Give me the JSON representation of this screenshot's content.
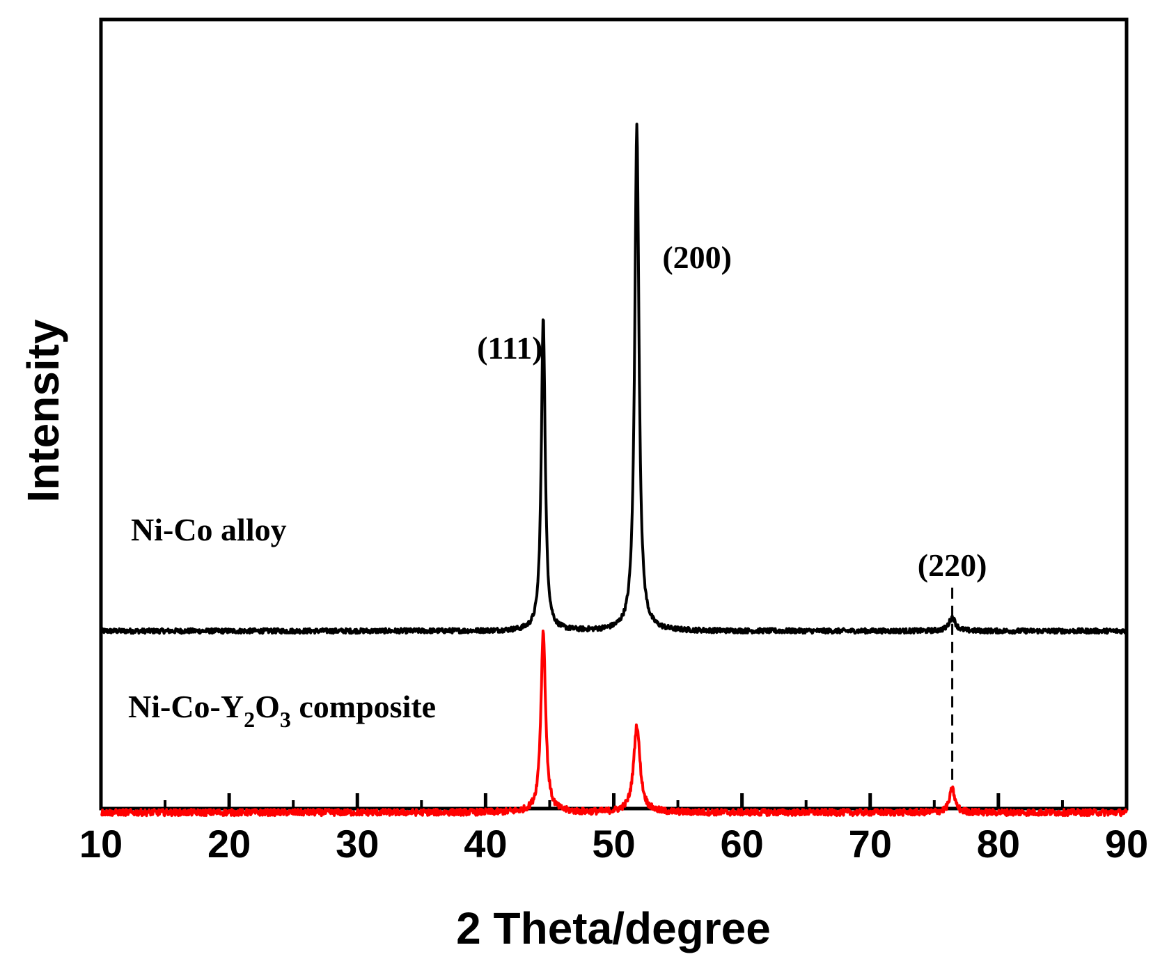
{
  "chart_data": {
    "type": "line",
    "title": "",
    "xlabel": "2 Theta/degree",
    "ylabel": "Intensity",
    "xlim": [
      10,
      90
    ],
    "ylim": [
      -0.45,
      1.55
    ],
    "x_ticks": [
      "10",
      "20",
      "30",
      "40",
      "50",
      "60",
      "70",
      "80",
      "90"
    ],
    "y_ticks_shown": false,
    "grid": false,
    "legend": "none",
    "series": [
      {
        "name": "Ni-Co alloy",
        "color": "#000000",
        "baseline": 0.0,
        "noise": 0.006,
        "peaks": [
          {
            "x": 44.5,
            "height": 0.8,
            "width": 0.18
          },
          {
            "x": 51.8,
            "height": 1.28,
            "width": 0.2
          },
          {
            "x": 76.4,
            "height": 0.035,
            "width": 0.3
          }
        ]
      },
      {
        "name": "Ni-Co-Y2O3 composite",
        "color": "#ff0000",
        "baseline": -0.46,
        "noise": 0.008,
        "peaks": [
          {
            "x": 44.5,
            "height": 0.46,
            "width": 0.22
          },
          {
            "x": 51.8,
            "height": 0.22,
            "width": 0.3
          },
          {
            "x": 76.4,
            "height": 0.06,
            "width": 0.25
          }
        ]
      }
    ],
    "annotations": [
      {
        "text": "(111)",
        "x": 41.9,
        "y": 0.69
      },
      {
        "text": "(200)",
        "x": 56.5,
        "y": 0.92
      },
      {
        "text": "(220)",
        "x": 76.4,
        "y": 0.14
      }
    ],
    "series_labels": [
      {
        "main": "Ni-Co alloy"
      },
      {
        "main_a": "Ni-Co-Y",
        "sub_1": "2",
        "main_b": "O",
        "sub_2": "3",
        "main_c": " composite"
      }
    ],
    "reference_line": {
      "x": 76.4,
      "style": "dashed"
    }
  }
}
